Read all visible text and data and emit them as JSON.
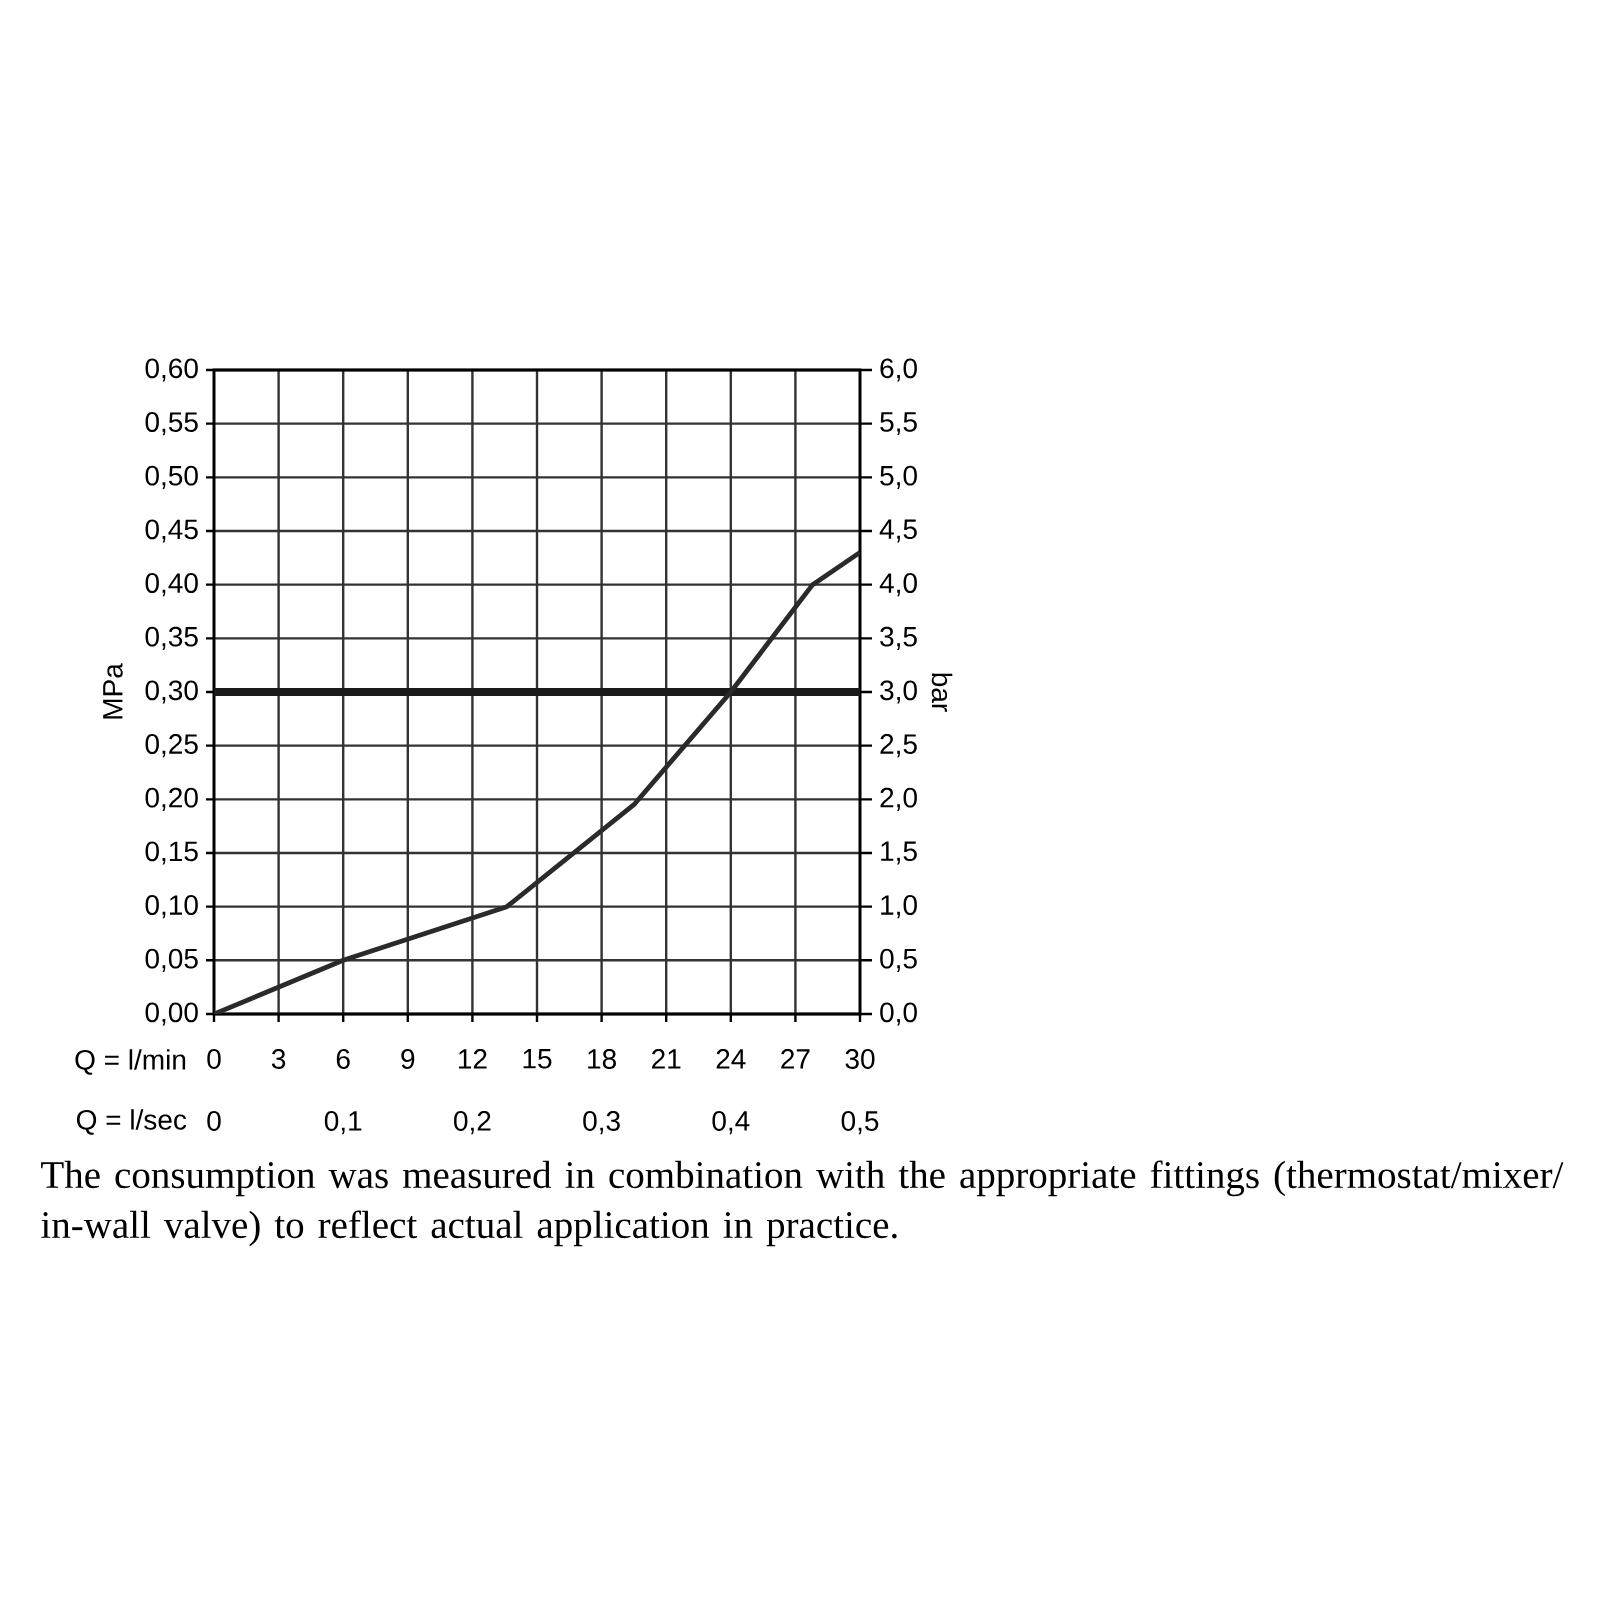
{
  "chart_data": {
    "type": "line",
    "xlabel": "Q = l/min",
    "ylabel": "MPa",
    "y2label": "bar",
    "x2label": "Q = l/sec",
    "x": [
      0,
      6,
      13.6,
      19.5,
      24,
      27.8,
      30
    ],
    "series": [
      {
        "color": "#2a2a2a",
        "values": [
          0,
          0.05,
          0.1,
          0.195,
          0.3,
          0.4,
          0.43
        ]
      }
    ],
    "xlim": [
      0,
      30
    ],
    "xticks": [
      0,
      3,
      6,
      9,
      12,
      15,
      18,
      21,
      24,
      27,
      30
    ],
    "ylim": [
      0,
      0.6
    ],
    "yticks": [
      {
        "value": 0,
        "label": "0,00"
      },
      {
        "value": 0.05,
        "label": "0,05"
      },
      {
        "value": 0.1,
        "label": "0,10"
      },
      {
        "value": 0.15,
        "label": "0,15"
      },
      {
        "value": 0.2,
        "label": "0,20"
      },
      {
        "value": 0.25,
        "label": "0,25"
      },
      {
        "value": 0.3,
        "label": "0,30"
      },
      {
        "value": 0.35,
        "label": "0,35"
      },
      {
        "value": 0.4,
        "label": "0,40"
      },
      {
        "value": 0.45,
        "label": "0,45"
      },
      {
        "value": 0.5,
        "label": "0,50"
      },
      {
        "value": 0.55,
        "label": "0,55"
      },
      {
        "value": 0.6,
        "label": "0,60"
      }
    ],
    "y2lim": [
      0,
      6
    ],
    "y2ticks": [
      {
        "value": 0,
        "label": "0,0"
      },
      {
        "value": 0.5,
        "label": "0,5"
      },
      {
        "value": 1,
        "label": "1,0"
      },
      {
        "value": 1.5,
        "label": "1,5"
      },
      {
        "value": 2,
        "label": "2,0"
      },
      {
        "value": 2.5,
        "label": "2,5"
      },
      {
        "value": 3,
        "label": "3,0"
      },
      {
        "value": 3.5,
        "label": "3,5"
      },
      {
        "value": 4,
        "label": "4,0"
      },
      {
        "value": 4.5,
        "label": "4,5"
      },
      {
        "value": 5,
        "label": "5,0"
      },
      {
        "value": 5.5,
        "label": "5,5"
      },
      {
        "value": 6,
        "label": "6,0"
      }
    ],
    "x2lim": [
      0,
      0.5
    ],
    "x2ticks": [
      0,
      {
        "value": 0.1,
        "label": "0,1"
      },
      {
        "value": 0.2,
        "label": "0,2"
      },
      {
        "value": 0.3,
        "label": "0,3"
      },
      {
        "value": 0.4,
        "label": "0,4"
      },
      {
        "value": 0.5,
        "label": "0,5"
      }
    ],
    "ref_lines": [
      {
        "axis": "y",
        "value": 0.3,
        "color": "#1a1a1a"
      }
    ],
    "grid": true,
    "line_style": "solid",
    "annotations": [
      "The consumption was measured in combination with the appropriate fittings (thermostat/mixer/ in-wall valve) to reflect actual application in practice."
    ]
  }
}
